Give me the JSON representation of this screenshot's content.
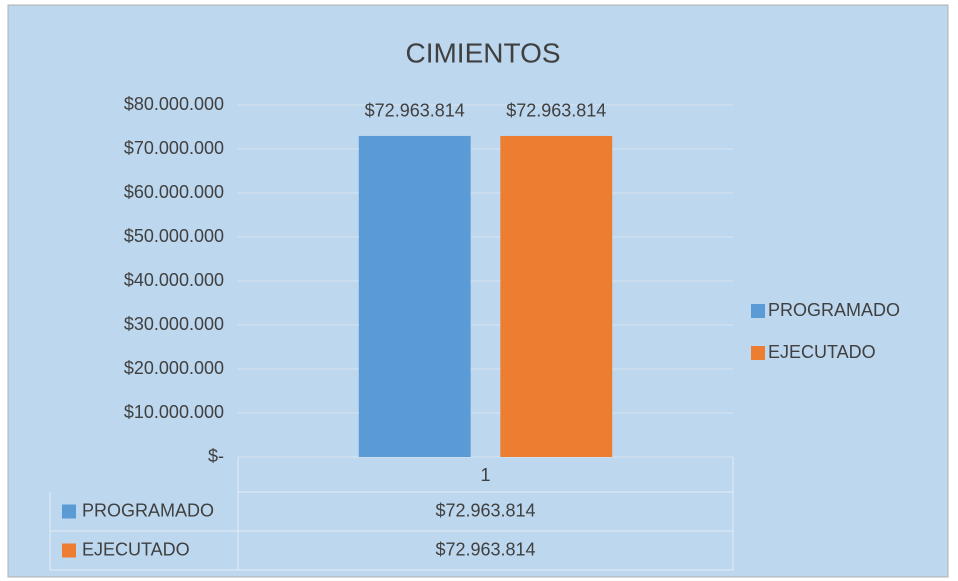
{
  "chart_data": {
    "type": "bar",
    "title": "CIMIENTOS",
    "categories": [
      "1"
    ],
    "series": [
      {
        "name": "PROGRAMADO",
        "color": "#5b9bd5",
        "values": [
          72963814
        ],
        "value_labels": [
          "$72.963.814"
        ]
      },
      {
        "name": "EJECUTADO",
        "color": "#ed7d31",
        "values": [
          72963814
        ],
        "value_labels": [
          "$72.963.814"
        ]
      }
    ],
    "ylim": [
      0,
      80000000
    ],
    "yticks": [
      {
        "value": 0,
        "label": "$-"
      },
      {
        "value": 10000000,
        "label": "$10.000.000"
      },
      {
        "value": 20000000,
        "label": "$20.000.000"
      },
      {
        "value": 30000000,
        "label": "$30.000.000"
      },
      {
        "value": 40000000,
        "label": "$40.000.000"
      },
      {
        "value": 50000000,
        "label": "$50.000.000"
      },
      {
        "value": 60000000,
        "label": "$60.000.000"
      },
      {
        "value": 70000000,
        "label": "$70.000.000"
      },
      {
        "value": 80000000,
        "label": "$80.000.000"
      }
    ],
    "grid": true,
    "legend": "right",
    "data_table": true
  }
}
